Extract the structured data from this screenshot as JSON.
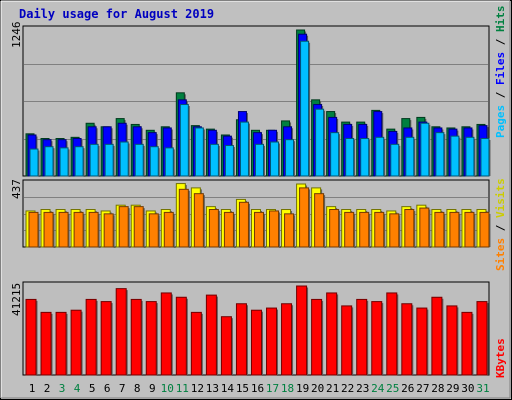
{
  "title": "Daily usage for August 2019",
  "colors": {
    "background": "#c0c0c0",
    "plot_bg": "#bebebe",
    "border": "#000000",
    "grid": "#808080",
    "pages": "#00c0ff",
    "files": "#0000ff",
    "hits": "#008040",
    "visits": "#ffff00",
    "sites": "#ff8000",
    "kbytes": "#ff0000",
    "weekend_label": "#008040",
    "weekday_label": "#000000",
    "title": "#0000c0"
  },
  "chart_data": [
    {
      "type": "bar",
      "panel": "hits_files_pages",
      "ymax_label": "1246",
      "ylim": [
        0,
        1246
      ],
      "grid": true,
      "right_labels": [
        "Pages",
        "Files",
        "Hits"
      ],
      "categories": [
        "1",
        "2",
        "3",
        "4",
        "5",
        "6",
        "7",
        "8",
        "9",
        "10",
        "11",
        "12",
        "13",
        "14",
        "15",
        "16",
        "17",
        "18",
        "19",
        "20",
        "21",
        "22",
        "23",
        "24",
        "25",
        "26",
        "27",
        "28",
        "29",
        "30",
        "31"
      ],
      "series": [
        {
          "name": "Hits",
          "values": [
            360,
            320,
            320,
            330,
            450,
            420,
            490,
            440,
            390,
            420,
            710,
            430,
            400,
            350,
            480,
            390,
            390,
            470,
            1246,
            650,
            550,
            460,
            460,
            560,
            400,
            490,
            500,
            420,
            410,
            420,
            440
          ]
        },
        {
          "name": "Files",
          "values": [
            350,
            310,
            310,
            320,
            420,
            420,
            450,
            420,
            370,
            410,
            650,
            420,
            390,
            340,
            550,
            370,
            390,
            420,
            1210,
            610,
            500,
            440,
            440,
            550,
            380,
            410,
            460,
            410,
            400,
            410,
            430
          ]
        },
        {
          "name": "Pages",
          "values": [
            230,
            250,
            240,
            250,
            270,
            270,
            290,
            270,
            250,
            240,
            610,
            410,
            270,
            260,
            460,
            270,
            290,
            310,
            1150,
            570,
            370,
            320,
            320,
            330,
            270,
            330,
            450,
            370,
            340,
            330,
            320
          ]
        }
      ]
    },
    {
      "type": "bar",
      "panel": "visits_sites",
      "ymax_label": "437",
      "ylim": [
        0,
        437
      ],
      "grid": true,
      "right_labels": [
        "Sites",
        "Visits"
      ],
      "categories": [
        "1",
        "2",
        "3",
        "4",
        "5",
        "6",
        "7",
        "8",
        "9",
        "10",
        "11",
        "12",
        "13",
        "14",
        "15",
        "16",
        "17",
        "18",
        "19",
        "20",
        "21",
        "22",
        "23",
        "24",
        "25",
        "26",
        "27",
        "28",
        "29",
        "30",
        "31"
      ],
      "series": [
        {
          "name": "Visits",
          "values": [
            250,
            260,
            260,
            260,
            260,
            250,
            290,
            290,
            250,
            260,
            440,
            410,
            280,
            260,
            330,
            260,
            260,
            260,
            437,
            410,
            280,
            260,
            260,
            260,
            250,
            280,
            290,
            260,
            260,
            260,
            260
          ]
        },
        {
          "name": "Sites",
          "values": [
            240,
            240,
            240,
            240,
            240,
            230,
            280,
            280,
            230,
            240,
            400,
            370,
            260,
            240,
            310,
            240,
            250,
            230,
            410,
            370,
            260,
            240,
            240,
            240,
            230,
            260,
            270,
            240,
            240,
            240,
            240
          ]
        }
      ]
    },
    {
      "type": "bar",
      "panel": "kbytes",
      "ymax_label": "41215",
      "ylim": [
        0,
        41215
      ],
      "grid": false,
      "right_labels": [
        "KBytes"
      ],
      "categories": [
        "1",
        "2",
        "3",
        "4",
        "5",
        "6",
        "7",
        "8",
        "9",
        "10",
        "11",
        "12",
        "13",
        "14",
        "15",
        "16",
        "17",
        "18",
        "19",
        "20",
        "21",
        "22",
        "23",
        "24",
        "25",
        "26",
        "27",
        "28",
        "29",
        "30",
        "31"
      ],
      "series": [
        {
          "name": "KBytes",
          "values": [
            35000,
            29000,
            29000,
            30000,
            35000,
            34000,
            40000,
            35000,
            34000,
            38000,
            36000,
            29000,
            37000,
            27000,
            33000,
            30000,
            31000,
            33000,
            41215,
            35000,
            38000,
            32000,
            35000,
            34000,
            38000,
            33000,
            31000,
            36000,
            32000,
            29000,
            34000
          ]
        }
      ]
    }
  ],
  "x_labels": [
    {
      "day": "1",
      "weekend": false
    },
    {
      "day": "2",
      "weekend": false
    },
    {
      "day": "3",
      "weekend": true
    },
    {
      "day": "4",
      "weekend": true
    },
    {
      "day": "5",
      "weekend": false
    },
    {
      "day": "6",
      "weekend": false
    },
    {
      "day": "7",
      "weekend": false
    },
    {
      "day": "8",
      "weekend": false
    },
    {
      "day": "9",
      "weekend": false
    },
    {
      "day": "10",
      "weekend": true
    },
    {
      "day": "11",
      "weekend": true
    },
    {
      "day": "12",
      "weekend": false
    },
    {
      "day": "13",
      "weekend": false
    },
    {
      "day": "14",
      "weekend": false
    },
    {
      "day": "15",
      "weekend": false
    },
    {
      "day": "16",
      "weekend": false
    },
    {
      "day": "17",
      "weekend": true
    },
    {
      "day": "18",
      "weekend": true
    },
    {
      "day": "19",
      "weekend": false
    },
    {
      "day": "20",
      "weekend": false
    },
    {
      "day": "21",
      "weekend": false
    },
    {
      "day": "22",
      "weekend": false
    },
    {
      "day": "23",
      "weekend": false
    },
    {
      "day": "24",
      "weekend": true
    },
    {
      "day": "25",
      "weekend": true
    },
    {
      "day": "26",
      "weekend": false
    },
    {
      "day": "27",
      "weekend": false
    },
    {
      "day": "28",
      "weekend": false
    },
    {
      "day": "29",
      "weekend": false
    },
    {
      "day": "30",
      "weekend": false
    },
    {
      "day": "31",
      "weekend": true
    }
  ]
}
